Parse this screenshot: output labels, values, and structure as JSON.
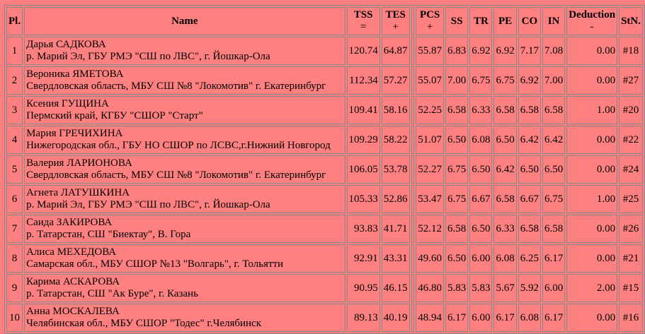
{
  "headers": {
    "pl": "Pl.",
    "name": "Name",
    "tss": "TSS",
    "tss_sym": "=",
    "tes": "TES",
    "tes_sym": "+",
    "pcs": "PCS",
    "pcs_sym": "+",
    "ss": "SS",
    "tr": "TR",
    "pe": "PE",
    "co": "CO",
    "in": "IN",
    "ded": "Deduction",
    "ded_sym": "-",
    "stn": "StN."
  },
  "rows": [
    {
      "pl": "1",
      "name": "Дарья САДКОВА",
      "club": "р. Марий Эл, ГБУ РМЭ \"СШ по ЛВС\", г. Йошкар-Ола",
      "tss": "120.74",
      "tes": "64.87",
      "pcs": "55.87",
      "ss": "6.83",
      "tr": "6.92",
      "pe": "6.92",
      "co": "7.17",
      "in": "7.08",
      "ded": "0.00",
      "stn": "#18"
    },
    {
      "pl": "2",
      "name": "Вероника ЯМЕТОВА",
      "club": "Свердловская область, МБУ СШ №8 \"Локомотив\" г. Екатеринбург",
      "tss": "112.34",
      "tes": "57.27",
      "pcs": "55.07",
      "ss": "7.00",
      "tr": "6.75",
      "pe": "6.75",
      "co": "6.92",
      "in": "7.00",
      "ded": "0.00",
      "stn": "#27"
    },
    {
      "pl": "3",
      "name": "Ксения ГУЩИНА",
      "club": "Пермский край, КГБУ \"СШОР \"Старт\"",
      "tss": "109.41",
      "tes": "58.16",
      "pcs": "52.25",
      "ss": "6.58",
      "tr": "6.33",
      "pe": "6.58",
      "co": "6.58",
      "in": "6.58",
      "ded": "1.00",
      "stn": "#20"
    },
    {
      "pl": "4",
      "name": "Мария ГРЕЧИХИНА",
      "club": "Нижегородская обл., ГБУ НО СШОР по ЛСВС,г.Нижний Новгород",
      "tss": "109.29",
      "tes": "58.22",
      "pcs": "51.07",
      "ss": "6.50",
      "tr": "6.08",
      "pe": "6.50",
      "co": "6.42",
      "in": "6.42",
      "ded": "0.00",
      "stn": "#22"
    },
    {
      "pl": "5",
      "name": "Валерия ЛАРИОНОВА",
      "club": "Свердловская область, МБУ СШ №8 \"Локомотив\" г. Екатеринбург",
      "tss": "106.05",
      "tes": "53.78",
      "pcs": "52.27",
      "ss": "6.75",
      "tr": "6.50",
      "pe": "6.42",
      "co": "6.50",
      "in": "6.50",
      "ded": "0.00",
      "stn": "#24"
    },
    {
      "pl": "6",
      "name": "Агнета ЛАТУШКИНА",
      "club": "р. Марий Эл, ГБУ РМЭ \"СШ по ЛВС\", г. Йошкар-Ола",
      "tss": "105.33",
      "tes": "52.86",
      "pcs": "53.47",
      "ss": "6.75",
      "tr": "6.67",
      "pe": "6.58",
      "co": "6.67",
      "in": "6.75",
      "ded": "1.00",
      "stn": "#25"
    },
    {
      "pl": "7",
      "name": "Саида ЗАКИРОВА",
      "club": "р. Татарстан, СШ \"Биектау\", В. Гора",
      "tss": "93.83",
      "tes": "41.71",
      "pcs": "52.12",
      "ss": "6.58",
      "tr": "6.50",
      "pe": "6.33",
      "co": "6.58",
      "in": "6.58",
      "ded": "0.00",
      "stn": "#26"
    },
    {
      "pl": "8",
      "name": "Алиса МЕХЕДОВА",
      "club": "Самарская обл., МБУ СШОР №13 \"Волгарь\", г. Тольятти",
      "tss": "92.91",
      "tes": "43.31",
      "pcs": "49.60",
      "ss": "6.50",
      "tr": "6.00",
      "pe": "6.08",
      "co": "6.25",
      "in": "6.17",
      "ded": "0.00",
      "stn": "#21"
    },
    {
      "pl": "9",
      "name": "Карима АСКАРОВА",
      "club": "р. Татарстан, СШ \"Ак Буре\", г. Казань",
      "tss": "90.95",
      "tes": "46.15",
      "pcs": "46.80",
      "ss": "5.83",
      "tr": "5.83",
      "pe": "5.67",
      "co": "5.92",
      "in": "6.00",
      "ded": "2.00",
      "stn": "#15"
    },
    {
      "pl": "10",
      "name": "Анна МОСКАЛЕВА",
      "club": "Челябинская обл., МБУ СШОР \"Тодес\" г.Челябинск",
      "tss": "89.13",
      "tes": "40.19",
      "pcs": "48.94",
      "ss": "6.17",
      "tr": "6.00",
      "pe": "6.17",
      "co": "6.08",
      "in": "6.17",
      "ded": "0.00",
      "stn": "#16"
    }
  ]
}
